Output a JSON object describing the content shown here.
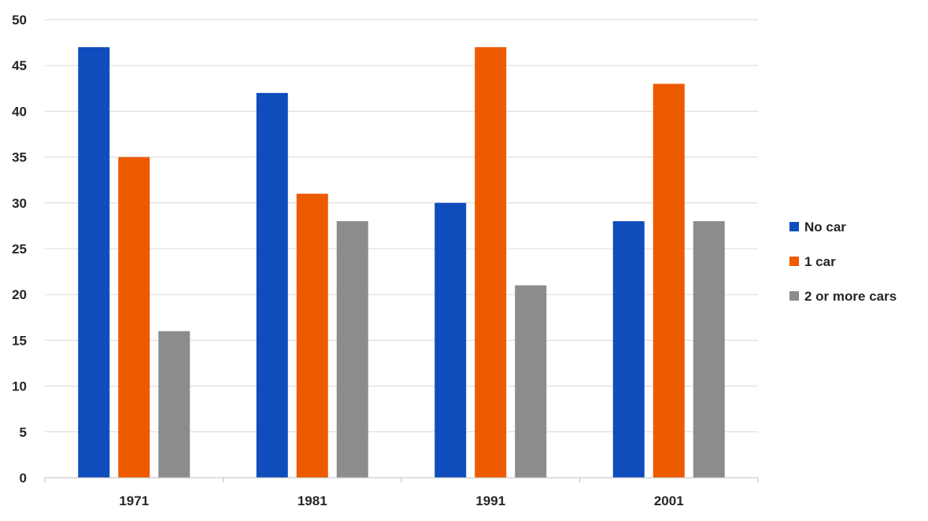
{
  "chart_data": {
    "type": "bar",
    "title": "",
    "xlabel": "",
    "ylabel": "",
    "categories": [
      "1971",
      "1981",
      "1991",
      "2001"
    ],
    "series": [
      {
        "name": "No car",
        "values": [
          47,
          42,
          30,
          28
        ],
        "color": "#0f4dbc"
      },
      {
        "name": "1 car",
        "values": [
          35,
          31,
          47,
          43
        ],
        "color": "#ee5a00"
      },
      {
        "name": "2 or more cars",
        "values": [
          16,
          28,
          21,
          28
        ],
        "color": "#8c8c8c"
      }
    ],
    "ylim": [
      0,
      50
    ],
    "yticks": [
      "0",
      "5",
      "10",
      "15",
      "20",
      "25",
      "30",
      "35",
      "40",
      "45",
      "50"
    ],
    "grid": true,
    "legend_position": "right",
    "gridline_color": "#d9d9d9",
    "axis_color": "#bfbfbf",
    "text_color": "#262626"
  }
}
